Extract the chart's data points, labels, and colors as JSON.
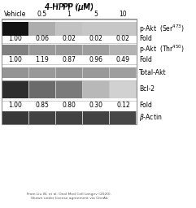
{
  "title": "4-HPPP (μM)",
  "col_labels": [
    "Vehicle",
    "0.5",
    "1",
    "5",
    "10"
  ],
  "fold_row1": [
    "1.00",
    "0.06",
    "0.02",
    "0.02",
    "0.02"
  ],
  "fold_row2": [
    "1.00",
    "1.19",
    "0.87",
    "0.96",
    "0.49"
  ],
  "fold_row3": [
    "1.00",
    "0.85",
    "0.80",
    "0.30",
    "0.12"
  ],
  "citation_line1": "From Liu W, et al. Onol Med Cell Longev (2020).",
  "citation_line2": "Shown under license agreement via CiteAb",
  "label_pakt_ser": "p-Akt  (Ser$^{473}$)",
  "label_pakt_thr": "p-Akt  (Thr$^{450}$)",
  "label_total": "Total-Akt",
  "label_bcl2": "Bcl-2",
  "label_fold": "Fold",
  "label_actin": "$\\beta$-Actin",
  "blot_bg": 0.78,
  "band_row0": [
    0.08,
    0.68,
    0.76,
    0.78,
    0.78
  ],
  "band_row2": [
    0.5,
    0.6,
    0.6,
    0.62,
    0.7
  ],
  "band_row4": [
    0.58,
    0.6,
    0.58,
    0.6,
    0.62
  ],
  "band_row5": [
    0.18,
    0.42,
    0.48,
    0.72,
    0.82
  ],
  "band_row7": [
    0.22,
    0.26,
    0.26,
    0.26,
    0.28
  ],
  "separator_color": "#ffffff",
  "outer_border_color": "#888888"
}
